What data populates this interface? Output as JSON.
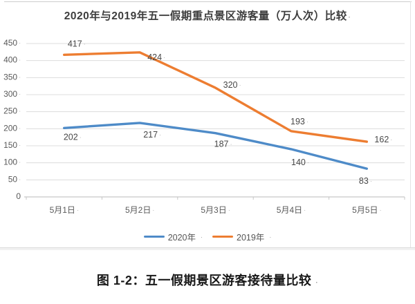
{
  "page": {
    "format_mark": "·",
    "caption": "图 1-2：五一假期景区游客接待量比较"
  },
  "chart_data": {
    "type": "line",
    "title": "2020年与2019年五一假期重点景区游客量（万人次）比较",
    "categories": [
      "5月1日",
      "5月2日",
      "5月3日",
      "5月4日",
      "5月5日"
    ],
    "series": [
      {
        "name": "2020年",
        "color": "#4e8bc8",
        "values": [
          202,
          217,
          187,
          140,
          83
        ]
      },
      {
        "name": "2019年",
        "color": "#ed7d31",
        "values": [
          417,
          424,
          320,
          193,
          162
        ]
      }
    ],
    "ylim": [
      0,
      450
    ],
    "yticks": [
      0,
      50,
      100,
      150,
      200,
      250,
      300,
      350,
      400,
      450
    ],
    "xlabel": "",
    "ylabel": "",
    "grid": true,
    "legend_position": "bottom",
    "colors": {
      "gridline": "#dcdcdc",
      "axis": "#c6c6c6",
      "tick_text": "#595959",
      "data_label": "#474747",
      "format_mark": "#9b9b9b"
    }
  }
}
